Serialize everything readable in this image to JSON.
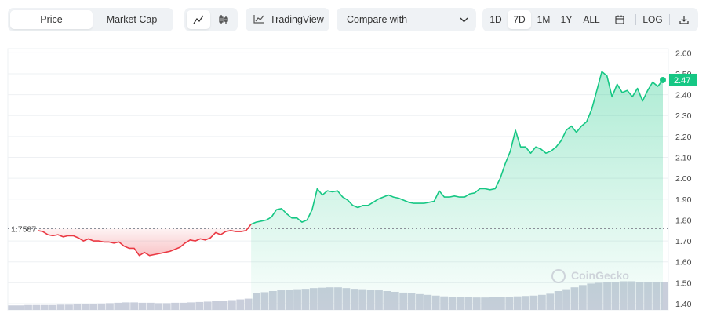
{
  "toolbar": {
    "metric_tabs": [
      "Price",
      "Market Cap"
    ],
    "active_metric": "Price",
    "chart_type_icons": [
      "line-chart-icon",
      "candlestick-icon"
    ],
    "tradingview_label": "TradingView",
    "compare_label": "Compare with",
    "ranges": [
      "1D",
      "7D",
      "1M",
      "1Y",
      "ALL"
    ],
    "active_range": "7D",
    "log_label": "LOG",
    "calendar_icon": "calendar-icon",
    "download_icon": "download-icon"
  },
  "watermark": "CoinGecko",
  "colors": {
    "up": "#16c784",
    "down": "#ea3943",
    "volume": "#c9cedb",
    "grid": "#eef0f3"
  },
  "chart_data": {
    "type": "line",
    "title": "",
    "xlabel": "",
    "ylabel": "",
    "ylim": [
      1.37,
      2.62
    ],
    "y_ticks": [
      "2.60",
      "2.50",
      "2.40",
      "2.30",
      "2.20",
      "2.10",
      "2.00",
      "1.90",
      "1.80",
      "1.70",
      "1.60",
      "1.50",
      "1.40"
    ],
    "baseline": 1.7587,
    "baseline_label": "1.7587",
    "current_price": 2.47,
    "current_price_label": "2.47",
    "grid": true,
    "series": [
      {
        "values": [
          1.75,
          1.745,
          1.73,
          1.725,
          1.73,
          1.72,
          1.725,
          1.725,
          1.715,
          1.7,
          1.71,
          1.7,
          1.7,
          1.695,
          1.695,
          1.69,
          1.695,
          1.675,
          1.665,
          1.665,
          1.63,
          1.645,
          1.63,
          1.635,
          1.64,
          1.645,
          1.65,
          1.66,
          1.67,
          1.69,
          1.705,
          1.7,
          1.71,
          1.705,
          1.715,
          1.74,
          1.73,
          1.745,
          1.75,
          1.745,
          1.745,
          1.75,
          1.78,
          1.79,
          1.795,
          1.8,
          1.815,
          1.85,
          1.855,
          1.83,
          1.81,
          1.81,
          1.79,
          1.8,
          1.85,
          1.95,
          1.92,
          1.94,
          1.935,
          1.94,
          1.91,
          1.895,
          1.87,
          1.86,
          1.87,
          1.87,
          1.885,
          1.9,
          1.91,
          1.92,
          1.91,
          1.905,
          1.895,
          1.885,
          1.88,
          1.88,
          1.88,
          1.885,
          1.89,
          1.94,
          1.91,
          1.91,
          1.915,
          1.91,
          1.91,
          1.925,
          1.93,
          1.95,
          1.95,
          1.945,
          1.95,
          2.0,
          2.07,
          2.13,
          2.23,
          2.15,
          2.15,
          2.12,
          2.15,
          2.14,
          2.12,
          2.13,
          2.15,
          2.18,
          2.23,
          2.25,
          2.22,
          2.25,
          2.27,
          2.33,
          2.42,
          2.51,
          2.49,
          2.39,
          2.45,
          2.41,
          2.42,
          2.39,
          2.43,
          2.37,
          2.42,
          2.46,
          2.44,
          2.47
        ]
      }
    ],
    "volume": [
      0.12,
      0.12,
      0.13,
      0.13,
      0.13,
      0.13,
      0.14,
      0.14,
      0.15,
      0.16,
      0.16,
      0.17,
      0.18,
      0.19,
      0.2,
      0.2,
      0.19,
      0.19,
      0.18,
      0.18,
      0.19,
      0.19,
      0.2,
      0.21,
      0.22,
      0.23,
      0.25,
      0.26,
      0.28,
      0.3,
      0.45,
      0.47,
      0.5,
      0.52,
      0.53,
      0.55,
      0.56,
      0.58,
      0.59,
      0.6,
      0.6,
      0.58,
      0.56,
      0.55,
      0.54,
      0.52,
      0.5,
      0.48,
      0.46,
      0.44,
      0.42,
      0.4,
      0.38,
      0.36,
      0.35,
      0.34,
      0.34,
      0.33,
      0.33,
      0.34,
      0.34,
      0.35,
      0.36,
      0.37,
      0.38,
      0.4,
      0.43,
      0.5,
      0.55,
      0.6,
      0.66,
      0.7,
      0.72,
      0.74,
      0.75,
      0.76,
      0.76,
      0.75,
      0.75,
      0.75,
      0.74
    ]
  }
}
